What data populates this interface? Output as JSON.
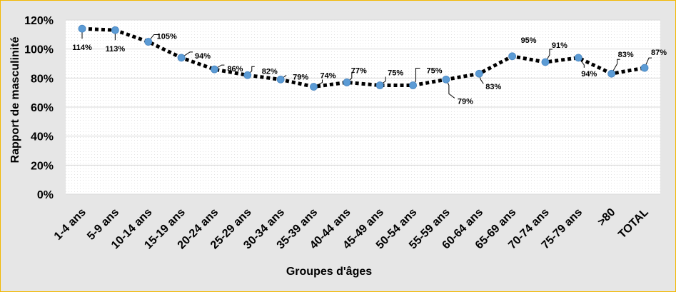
{
  "chart_data": {
    "type": "line",
    "title": "",
    "xlabel": "Groupes d'âges",
    "ylabel": "Rapport de masculinité",
    "ylim": [
      0,
      120
    ],
    "yticks": [
      0,
      20,
      40,
      60,
      80,
      100,
      120
    ],
    "ytick_labels": [
      "0%",
      "20%",
      "40%",
      "60%",
      "80%",
      "100%",
      "120%"
    ],
    "categories": [
      "1-4 ans",
      "5-9 ans",
      "10-14 ans",
      "15-19 ans",
      "20-24 ans",
      "25-29 ans",
      "30-34 ans",
      "35-39 ans",
      "40-44 ans",
      "45-49 ans",
      "50-54 ans",
      "55-59 ans",
      "60-64 ans",
      "65-69 ans",
      "70-74 ans",
      "75-79 ans",
      ">80",
      "TOTAL"
    ],
    "values": [
      114,
      113,
      105,
      94,
      86,
      82,
      79,
      74,
      77,
      75,
      75,
      79,
      83,
      95,
      91,
      94,
      83,
      87
    ],
    "data_labels": [
      "114%",
      "113%",
      "105%",
      "94%",
      "86%",
      "82%",
      "79%",
      "74%",
      "77%",
      "75%",
      "75%",
      "79%",
      "83%",
      "95%",
      "91%",
      "94%",
      "83%",
      "87%"
    ],
    "grid": true,
    "legend": "none",
    "colors": {
      "line": "#000000",
      "marker": "#5b9bd5",
      "background": "#e6e6e6",
      "plot_area": "#ffffff",
      "border": "#f2b800"
    }
  }
}
